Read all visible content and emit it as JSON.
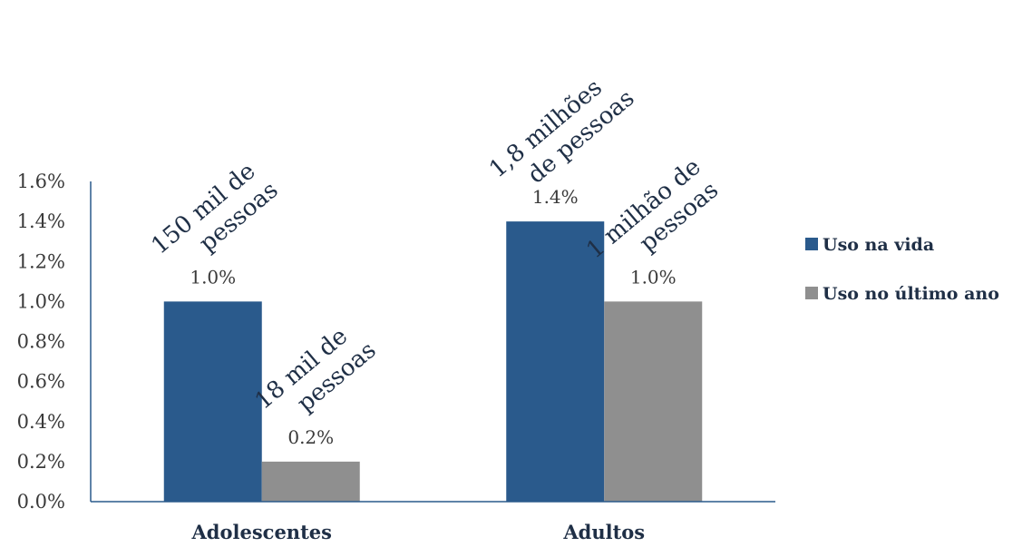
{
  "chart_data": {
    "type": "bar",
    "categories": [
      "Adolescentes",
      "Adultos"
    ],
    "series": [
      {
        "name": "Uso na vida",
        "values": [
          1.0,
          1.4
        ],
        "labels": [
          "1.0%",
          "1.4%"
        ],
        "color": "#2a5a8c"
      },
      {
        "name": "Uso no último ano",
        "values": [
          0.2,
          1.0
        ],
        "labels": [
          "0.2%",
          "1.0%"
        ],
        "color": "#8f8f8f"
      }
    ],
    "ylim": [
      0,
      1.6
    ],
    "yticks": [
      "0.0%",
      "0.2%",
      "0.4%",
      "0.6%",
      "0.8%",
      "1.0%",
      "1.2%",
      "1.4%",
      "1.6%"
    ],
    "grid": false,
    "legend_position": "right",
    "annotations": [
      {
        "category": 0,
        "series": 0,
        "lines": [
          "150 mil de",
          "pessoas"
        ]
      },
      {
        "category": 0,
        "series": 1,
        "lines": [
          "18 mil de",
          "pessoas"
        ]
      },
      {
        "category": 1,
        "series": 0,
        "lines": [
          "1,8 milhões",
          "de pessoas"
        ]
      },
      {
        "category": 1,
        "series": 1,
        "lines": [
          "1 milhão de",
          "pessoas"
        ]
      }
    ],
    "axis_color": "#2a5a8c"
  }
}
